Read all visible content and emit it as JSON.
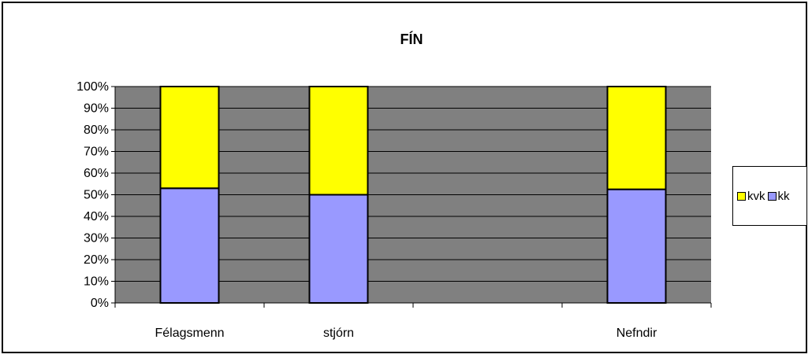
{
  "chart_data": {
    "type": "bar",
    "stacked": true,
    "percent": true,
    "title": "FÍN",
    "categories": [
      "Félagsmenn",
      "stjórn",
      "",
      "Nefndir"
    ],
    "series": [
      {
        "name": "kk",
        "color": "#9999ff",
        "values": [
          53,
          50,
          null,
          52.5
        ]
      },
      {
        "name": "kvk",
        "color": "#ffff00",
        "values": [
          47,
          50,
          null,
          47.5
        ]
      }
    ],
    "ylim": [
      0,
      100
    ],
    "yticks": [
      "0%",
      "10%",
      "20%",
      "30%",
      "40%",
      "50%",
      "60%",
      "70%",
      "80%",
      "90%",
      "100%"
    ],
    "grid": true,
    "plot_background": "#808080",
    "legend_position": "right",
    "legend_order": [
      "kvk",
      "kk"
    ]
  }
}
